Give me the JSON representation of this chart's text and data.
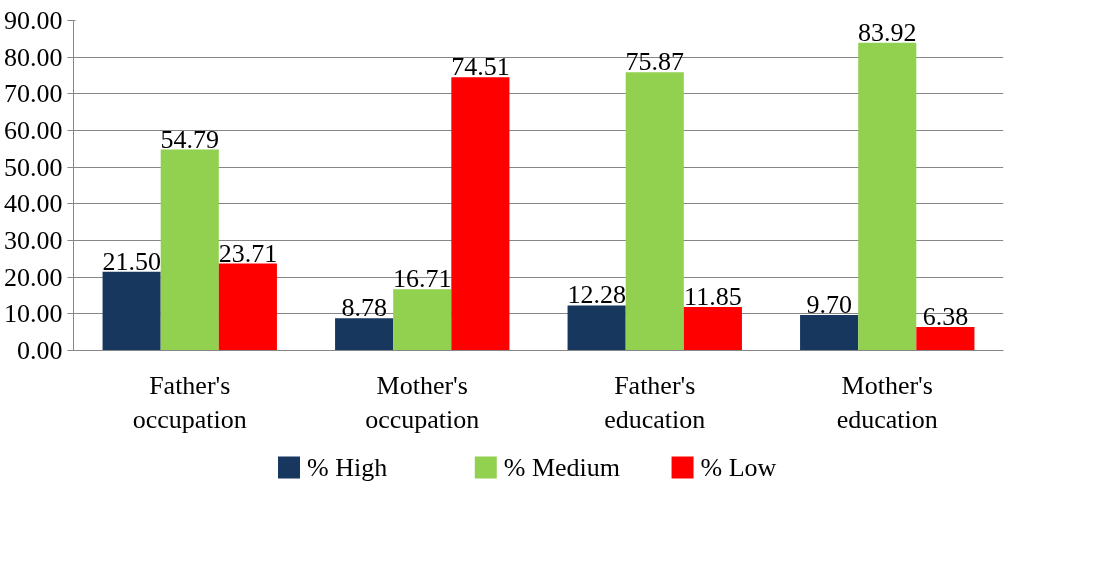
{
  "chart_data": {
    "type": "bar",
    "categories": [
      "Father's occupation",
      "Mother's occupation",
      "Father's education",
      "Mother's education"
    ],
    "series": [
      {
        "name": "% High",
        "color": "#17375e",
        "values": [
          21.5,
          8.78,
          12.28,
          9.7
        ],
        "value_labels": [
          "21.50",
          "8.78",
          "12.28",
          "9.70"
        ]
      },
      {
        "name": "% Medium",
        "color": "#92d050",
        "values": [
          54.79,
          16.71,
          75.87,
          83.92
        ],
        "value_labels": [
          "54.79",
          "16.71",
          "75.87",
          "83.92"
        ]
      },
      {
        "name": "% Low",
        "color": "#ff0000",
        "values": [
          23.71,
          74.51,
          11.85,
          6.38
        ],
        "value_labels": [
          "23.71",
          "74.51",
          "11.85",
          "6.38"
        ]
      }
    ],
    "ylim": [
      0,
      90
    ],
    "yticks": [
      {
        "value": 0,
        "label": "0.00"
      },
      {
        "value": 10,
        "label": "10.00"
      },
      {
        "value": 20,
        "label": "20.00"
      },
      {
        "value": 30,
        "label": "30.00"
      },
      {
        "value": 40,
        "label": "40.00"
      },
      {
        "value": 50,
        "label": "50.00"
      },
      {
        "value": 60,
        "label": "60.00"
      },
      {
        "value": 70,
        "label": "70.00"
      },
      {
        "value": 80,
        "label": "80.00"
      },
      {
        "value": 90,
        "label": "90.00"
      }
    ],
    "grid": "y",
    "legend": "bottom"
  }
}
